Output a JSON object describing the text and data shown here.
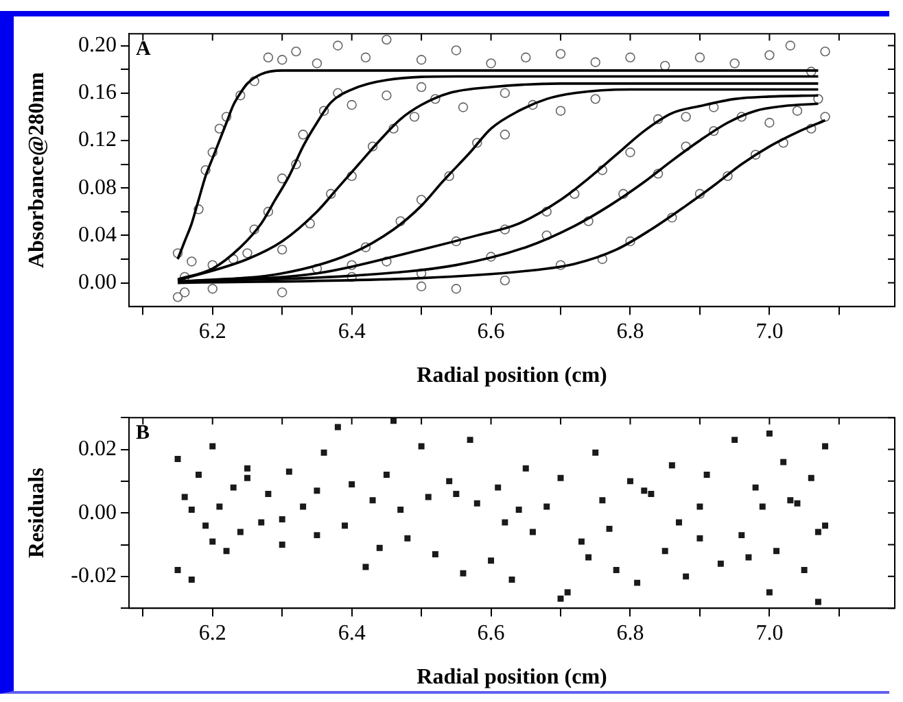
{
  "chart_data": [
    {
      "type": "scatter",
      "xlabel": "Radial position (cm)",
      "ylabel": "Absorbance@280nm",
      "annotations": [
        "A"
      ],
      "grid": false,
      "legend": false,
      "marker": "circle",
      "xlim": [
        6.08,
        7.18
      ],
      "xticks": [
        {
          "value": 6.1,
          "label": null
        },
        6.2,
        {
          "value": 6.3,
          "label": null
        },
        6.4,
        {
          "value": 6.5,
          "label": null
        },
        6.6,
        {
          "value": 6.7,
          "label": null
        },
        6.8,
        {
          "value": 6.9,
          "label": null
        },
        {
          "value": 7.0,
          "label": "7.0"
        },
        {
          "value": 7.1,
          "label": null
        }
      ],
      "ylim": [
        -0.02,
        0.21
      ],
      "yticks": [
        {
          "value": 0,
          "label": "0.00"
        },
        {
          "value": 0.02,
          "label": null
        },
        0.04,
        {
          "value": 0.06,
          "label": null
        },
        0.08,
        {
          "value": 0.1,
          "label": null
        },
        0.12,
        {
          "value": 0.14,
          "label": null
        },
        0.16,
        {
          "value": 0.18,
          "label": null
        },
        {
          "value": 0.2,
          "label": "0.20"
        }
      ],
      "series": [
        {
          "type": "scatter",
          "color": "#666666",
          "x": [
            6.15,
            6.15,
            6.16,
            6.16,
            6.17,
            6.18,
            6.19,
            6.2,
            6.21,
            6.22,
            6.24,
            6.26,
            6.28,
            6.3,
            6.32,
            6.35,
            6.38,
            6.42,
            6.45,
            6.5,
            6.55,
            6.6,
            6.65,
            6.7,
            6.75,
            6.8,
            6.85,
            6.9,
            6.95,
            7.0,
            7.03,
            7.06,
            7.08,
            7.08,
            7.07,
            6.2,
            6.23,
            6.26,
            6.28,
            6.3,
            6.32,
            6.33,
            6.36,
            6.38,
            6.4,
            6.45,
            6.5,
            6.25,
            6.3,
            6.34,
            6.37,
            6.4,
            6.43,
            6.46,
            6.49,
            6.52,
            6.56,
            6.62,
            6.35,
            6.42,
            6.47,
            6.5,
            6.54,
            6.58,
            6.62,
            6.66,
            6.7,
            6.75,
            6.45,
            6.55,
            6.62,
            6.68,
            6.72,
            6.76,
            6.8,
            6.84,
            6.88,
            6.92,
            6.5,
            6.6,
            6.68,
            6.74,
            6.79,
            6.84,
            6.88,
            6.92,
            6.96,
            7.0,
            7.04,
            6.4,
            6.55,
            6.62,
            6.7,
            6.76,
            6.8,
            6.86,
            6.9,
            6.94,
            6.98,
            7.02,
            7.06,
            6.2,
            6.3,
            6.4,
            6.5
          ],
          "values": [
            -0.012,
            0.025,
            0.005,
            -0.008,
            0.018,
            0.062,
            0.095,
            0.11,
            0.13,
            0.14,
            0.158,
            0.17,
            0.19,
            0.188,
            0.195,
            0.185,
            0.2,
            0.19,
            0.205,
            0.188,
            0.196,
            0.185,
            0.19,
            0.193,
            0.186,
            0.19,
            0.183,
            0.19,
            0.185,
            0.192,
            0.2,
            0.178,
            0.195,
            0.14,
            0.155,
            0.015,
            0.02,
            0.045,
            0.06,
            0.088,
            0.1,
            0.125,
            0.145,
            0.16,
            0.15,
            0.158,
            0.165,
            0.025,
            0.028,
            0.05,
            0.075,
            0.09,
            0.115,
            0.13,
            0.14,
            0.155,
            0.148,
            0.16,
            0.012,
            0.03,
            0.052,
            0.07,
            0.09,
            0.118,
            0.125,
            0.15,
            0.145,
            0.155,
            0.018,
            0.035,
            0.045,
            0.06,
            0.075,
            0.095,
            0.11,
            0.138,
            0.14,
            0.148,
            0.008,
            0.022,
            0.04,
            0.052,
            0.075,
            0.092,
            0.115,
            0.128,
            0.14,
            0.135,
            0.145,
            0.005,
            -0.005,
            0.002,
            0.015,
            0.02,
            0.035,
            0.055,
            0.075,
            0.09,
            0.108,
            0.118,
            0.13,
            -0.005,
            -0.008,
            0.015,
            -0.003
          ]
        },
        {
          "type": "line",
          "marker": "none",
          "color": "#000000",
          "x": [
            6.15,
            6.16,
            6.17,
            6.18,
            6.19,
            6.2,
            6.21,
            6.22,
            6.23,
            6.24,
            6.25,
            6.27,
            6.3,
            7.07
          ],
          "values": [
            0.02,
            0.035,
            0.05,
            0.07,
            0.09,
            0.105,
            0.12,
            0.135,
            0.15,
            0.16,
            0.168,
            0.176,
            0.179,
            0.179
          ]
        },
        {
          "type": "line",
          "marker": "none",
          "color": "#000000",
          "x": [
            6.15,
            6.2,
            6.24,
            6.27,
            6.29,
            6.31,
            6.33,
            6.35,
            6.37,
            6.4,
            6.45,
            6.55,
            7.07
          ],
          "values": [
            0.003,
            0.012,
            0.03,
            0.05,
            0.07,
            0.09,
            0.115,
            0.135,
            0.152,
            0.163,
            0.171,
            0.174,
            0.174
          ]
        },
        {
          "type": "line",
          "marker": "none",
          "color": "#000000",
          "x": [
            6.15,
            6.25,
            6.3,
            6.35,
            6.38,
            6.41,
            6.44,
            6.47,
            6.5,
            6.54,
            6.6,
            6.7,
            7.07
          ],
          "values": [
            0.002,
            0.02,
            0.035,
            0.06,
            0.08,
            0.1,
            0.12,
            0.138,
            0.15,
            0.16,
            0.165,
            0.168,
            0.168
          ]
        },
        {
          "type": "line",
          "marker": "none",
          "color": "#000000",
          "x": [
            6.15,
            6.3,
            6.4,
            6.46,
            6.5,
            6.53,
            6.57,
            6.6,
            6.64,
            6.68,
            6.72,
            6.8,
            6.9,
            7.07
          ],
          "values": [
            0.001,
            0.008,
            0.025,
            0.045,
            0.065,
            0.085,
            0.11,
            0.13,
            0.145,
            0.155,
            0.16,
            0.163,
            0.163,
            0.163
          ]
        },
        {
          "type": "line",
          "marker": "none",
          "color": "#000000",
          "x": [
            6.15,
            6.35,
            6.5,
            6.58,
            6.64,
            6.7,
            6.74,
            6.78,
            6.82,
            6.86,
            6.9,
            6.95,
            7.0,
            7.07
          ],
          "values": [
            0.001,
            0.008,
            0.028,
            0.04,
            0.05,
            0.07,
            0.088,
            0.108,
            0.128,
            0.143,
            0.149,
            0.155,
            0.157,
            0.158
          ]
        },
        {
          "type": "line",
          "marker": "none",
          "color": "#000000",
          "x": [
            6.15,
            6.4,
            6.55,
            6.65,
            6.72,
            6.77,
            6.82,
            6.86,
            6.9,
            6.94,
            6.98,
            7.02,
            7.07
          ],
          "values": [
            0.001,
            0.006,
            0.015,
            0.03,
            0.048,
            0.065,
            0.085,
            0.103,
            0.12,
            0.135,
            0.145,
            0.149,
            0.151
          ]
        },
        {
          "type": "line",
          "marker": "none",
          "color": "#000000",
          "x": [
            6.15,
            6.5,
            6.65,
            6.72,
            6.78,
            6.83,
            6.88,
            6.92,
            6.96,
            7.0,
            7.04,
            7.08
          ],
          "values": [
            0.0,
            0.004,
            0.01,
            0.016,
            0.028,
            0.045,
            0.065,
            0.082,
            0.1,
            0.115,
            0.127,
            0.137
          ]
        }
      ]
    },
    {
      "type": "scatter",
      "xlabel": "Radial position (cm)",
      "ylabel": "Residuals",
      "annotations": [
        "B"
      ],
      "grid": false,
      "legend": false,
      "marker": "square",
      "xlim": [
        6.08,
        7.18
      ],
      "xticks": [
        {
          "value": 6.1,
          "label": null
        },
        6.2,
        {
          "value": 6.3,
          "label": null
        },
        6.4,
        {
          "value": 6.5,
          "label": null
        },
        6.6,
        {
          "value": 6.7,
          "label": null
        },
        6.8,
        {
          "value": 6.9,
          "label": null
        },
        {
          "value": 7.0,
          "label": "7.0"
        },
        {
          "value": 7.1,
          "label": null
        }
      ],
      "ylim": [
        -0.03,
        0.03
      ],
      "yticks": [
        {
          "value": -0.03,
          "label": null
        },
        -0.02,
        {
          "value": -0.01,
          "label": null
        },
        {
          "value": 0,
          "label": "0.00"
        },
        {
          "value": 0.01,
          "label": null
        },
        0.02,
        {
          "value": 0.03,
          "label": null
        }
      ],
      "series": [
        {
          "type": "scatter",
          "color": "#1a1a1a",
          "x": [
            6.15,
            6.15,
            6.16,
            6.17,
            6.18,
            6.19,
            6.2,
            6.21,
            6.22,
            6.23,
            6.24,
            6.25,
            6.27,
            6.28,
            6.3,
            6.31,
            6.33,
            6.35,
            6.36,
            6.38,
            6.39,
            6.4,
            6.42,
            6.43,
            6.45,
            6.46,
            6.48,
            6.5,
            6.51,
            6.52,
            6.54,
            6.56,
            6.57,
            6.58,
            6.6,
            6.61,
            6.63,
            6.65,
            6.66,
            6.68,
            6.7,
            6.7,
            6.71,
            6.73,
            6.75,
            6.76,
            6.78,
            6.8,
            6.81,
            6.83,
            6.85,
            6.86,
            6.88,
            6.9,
            6.91,
            6.93,
            6.95,
            6.96,
            6.98,
            7.0,
            7.0,
            7.01,
            7.02,
            7.03,
            7.05,
            7.06,
            7.07,
            7.08,
            7.08,
            6.2,
            6.25,
            6.35,
            6.44,
            6.55,
            6.62,
            6.74,
            6.82,
            6.9,
            6.97,
            7.04,
            6.17,
            6.3,
            6.47,
            6.64,
            6.77,
            6.87,
            6.99,
            7.07
          ],
          "values": [
            0.017,
            -0.018,
            0.005,
            -0.021,
            0.012,
            -0.004,
            0.021,
            0.002,
            -0.012,
            0.008,
            -0.006,
            0.011,
            -0.003,
            0.006,
            -0.01,
            0.013,
            0.002,
            -0.007,
            0.019,
            0.027,
            -0.004,
            0.009,
            -0.017,
            0.004,
            0.012,
            0.029,
            -0.008,
            0.021,
            0.005,
            -0.013,
            0.01,
            -0.019,
            0.023,
            0.003,
            -0.015,
            0.008,
            -0.021,
            0.014,
            -0.006,
            0.002,
            -0.027,
            0.011,
            -0.025,
            -0.009,
            0.019,
            0.004,
            -0.018,
            0.01,
            -0.022,
            0.006,
            -0.012,
            0.015,
            -0.02,
            0.002,
            0.012,
            -0.016,
            0.023,
            -0.007,
            0.008,
            -0.025,
            0.025,
            -0.012,
            0.016,
            0.004,
            -0.018,
            0.011,
            -0.028,
            0.021,
            -0.004,
            -0.009,
            0.014,
            0.007,
            -0.011,
            0.006,
            -0.003,
            -0.014,
            0.007,
            -0.008,
            -0.014,
            0.003,
            0.001,
            -0.002,
            0.001,
            0.001,
            -0.005,
            -0.003,
            0.002,
            -0.006
          ]
        }
      ]
    }
  ]
}
